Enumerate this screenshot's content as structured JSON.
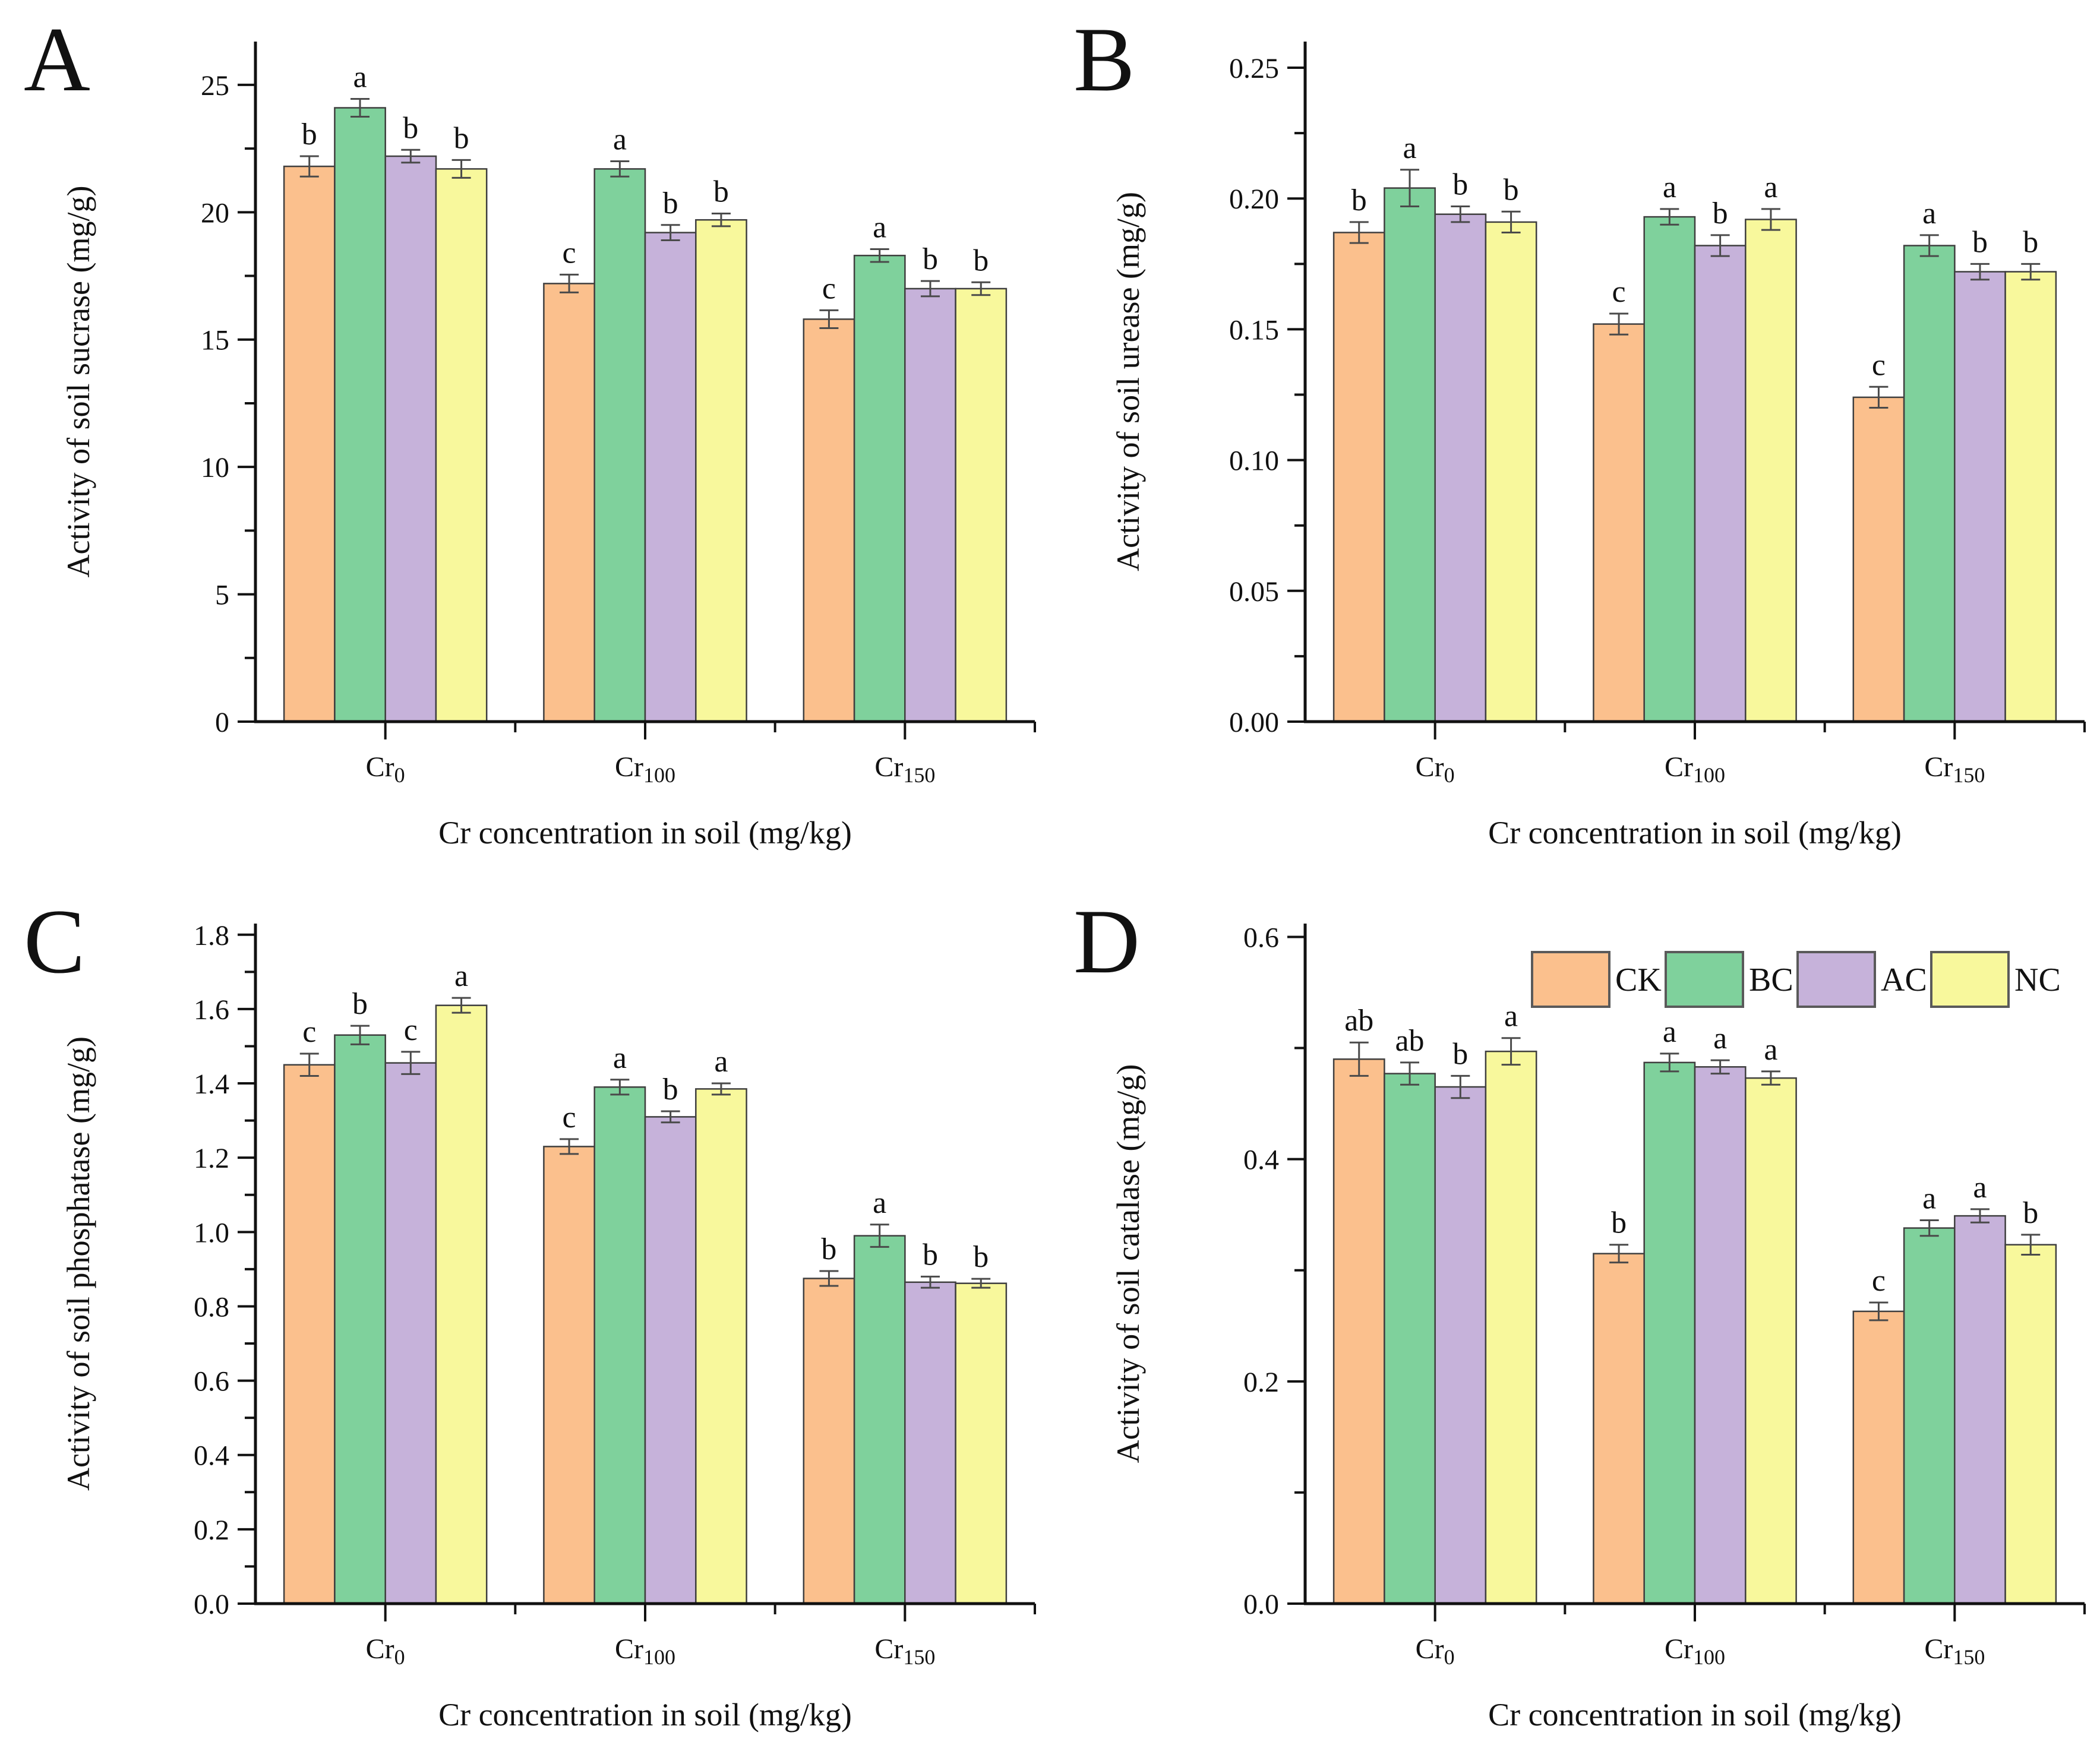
{
  "figure": {
    "background": "#ffffff"
  },
  "legend": {
    "position": "top-right-inside-panel-D",
    "entries": [
      {
        "label": "CK",
        "color": "#FBC08D"
      },
      {
        "label": "BC",
        "color": "#7FD19C"
      },
      {
        "label": "AC",
        "color": "#C6B2DA"
      },
      {
        "label": "NC",
        "color": "#F8F89C"
      }
    ]
  },
  "chart_data": [
    {
      "id": "A",
      "panel_letter": "A",
      "type": "bar",
      "ylabel": "Activity of soil sucrase (mg/g)",
      "xlabel": "Cr concentration in soil (mg/kg)",
      "ylim": [
        0,
        26.7
      ],
      "yticks": [
        0,
        5,
        10,
        15,
        20,
        25
      ],
      "ytick_step": 5,
      "yminor_step": 2.5,
      "tick_decimals": 0,
      "grid": false,
      "show_legend": false,
      "categories": [
        {
          "base": "Cr",
          "sub": "0"
        },
        {
          "base": "Cr",
          "sub": "100"
        },
        {
          "base": "Cr",
          "sub": "150"
        }
      ],
      "series": [
        {
          "name": "CK",
          "color": "#FBC08D",
          "values": [
            21.8,
            17.2,
            15.8
          ],
          "errors": [
            0.4,
            0.35,
            0.35
          ],
          "sig": [
            "b",
            "c",
            "c"
          ]
        },
        {
          "name": "BC",
          "color": "#7FD19C",
          "values": [
            24.1,
            21.7,
            18.3
          ],
          "errors": [
            0.35,
            0.3,
            0.25
          ],
          "sig": [
            "a",
            "a",
            "a"
          ]
        },
        {
          "name": "AC",
          "color": "#C6B2DA",
          "values": [
            22.2,
            19.2,
            17.0
          ],
          "errors": [
            0.25,
            0.3,
            0.3
          ],
          "sig": [
            "b",
            "b",
            "b"
          ]
        },
        {
          "name": "NC",
          "color": "#F8F89C",
          "values": [
            21.7,
            19.7,
            17.0
          ],
          "errors": [
            0.35,
            0.25,
            0.25
          ],
          "sig": [
            "b",
            "b",
            "b"
          ]
        }
      ]
    },
    {
      "id": "B",
      "panel_letter": "B",
      "type": "bar",
      "ylabel": "Activity of soil urease (mg/g)",
      "xlabel": "Cr concentration in soil (mg/kg)",
      "ylim": [
        0,
        0.26
      ],
      "yticks": [
        0.0,
        0.05,
        0.1,
        0.15,
        0.2,
        0.25
      ],
      "ytick_step": 0.05,
      "yminor_step": 0.025,
      "tick_decimals": 2,
      "grid": false,
      "show_legend": false,
      "categories": [
        {
          "base": "Cr",
          "sub": "0"
        },
        {
          "base": "Cr",
          "sub": "100"
        },
        {
          "base": "Cr",
          "sub": "150"
        }
      ],
      "series": [
        {
          "name": "CK",
          "color": "#FBC08D",
          "values": [
            0.187,
            0.152,
            0.124
          ],
          "errors": [
            0.004,
            0.004,
            0.004
          ],
          "sig": [
            "b",
            "c",
            "c"
          ]
        },
        {
          "name": "BC",
          "color": "#7FD19C",
          "values": [
            0.204,
            0.193,
            0.182
          ],
          "errors": [
            0.007,
            0.003,
            0.004
          ],
          "sig": [
            "a",
            "a",
            "a"
          ]
        },
        {
          "name": "AC",
          "color": "#C6B2DA",
          "values": [
            0.194,
            0.182,
            0.172
          ],
          "errors": [
            0.003,
            0.004,
            0.003
          ],
          "sig": [
            "b",
            "b",
            "b"
          ]
        },
        {
          "name": "NC",
          "color": "#F8F89C",
          "values": [
            0.191,
            0.192,
            0.172
          ],
          "errors": [
            0.004,
            0.004,
            0.003
          ],
          "sig": [
            "b",
            "a",
            "b"
          ]
        }
      ]
    },
    {
      "id": "C",
      "panel_letter": "C",
      "type": "bar",
      "ylabel": "Activity of soil phosphatase (mg/g)",
      "xlabel": "Cr concentration in soil (mg/kg)",
      "ylim": [
        0,
        1.83
      ],
      "yticks": [
        0.0,
        0.2,
        0.4,
        0.6,
        0.8,
        1.0,
        1.2,
        1.4,
        1.6,
        1.8
      ],
      "ytick_step": 0.2,
      "yminor_step": 0.1,
      "tick_decimals": 1,
      "grid": false,
      "show_legend": false,
      "categories": [
        {
          "base": "Cr",
          "sub": "0"
        },
        {
          "base": "Cr",
          "sub": "100"
        },
        {
          "base": "Cr",
          "sub": "150"
        }
      ],
      "series": [
        {
          "name": "CK",
          "color": "#FBC08D",
          "values": [
            1.45,
            1.23,
            0.875
          ],
          "errors": [
            0.03,
            0.02,
            0.02
          ],
          "sig": [
            "c",
            "c",
            "b"
          ]
        },
        {
          "name": "BC",
          "color": "#7FD19C",
          "values": [
            1.53,
            1.39,
            0.99
          ],
          "errors": [
            0.025,
            0.02,
            0.03
          ],
          "sig": [
            "b",
            "a",
            "a"
          ]
        },
        {
          "name": "AC",
          "color": "#C6B2DA",
          "values": [
            1.455,
            1.31,
            0.865
          ],
          "errors": [
            0.03,
            0.015,
            0.015
          ],
          "sig": [
            "c",
            "b",
            "b"
          ]
        },
        {
          "name": "NC",
          "color": "#F8F89C",
          "values": [
            1.61,
            1.385,
            0.862
          ],
          "errors": [
            0.02,
            0.015,
            0.012
          ],
          "sig": [
            "a",
            "a",
            "b"
          ]
        }
      ]
    },
    {
      "id": "D",
      "panel_letter": "D",
      "type": "bar",
      "ylabel": "Activity of soil catalase (mg/g)",
      "xlabel": "Cr concentration in soil (mg/kg)",
      "ylim": [
        0,
        0.612
      ],
      "yticks": [
        0.0,
        0.2,
        0.4,
        0.6
      ],
      "ytick_step": 0.2,
      "yminor_step": 0.1,
      "tick_decimals": 1,
      "grid": false,
      "show_legend": true,
      "categories": [
        {
          "base": "Cr",
          "sub": "0"
        },
        {
          "base": "Cr",
          "sub": "100"
        },
        {
          "base": "Cr",
          "sub": "150"
        }
      ],
      "series": [
        {
          "name": "CK",
          "color": "#FBC08D",
          "values": [
            0.49,
            0.315,
            0.263
          ],
          "errors": [
            0.015,
            0.008,
            0.008
          ],
          "sig": [
            "ab",
            "b",
            "c"
          ]
        },
        {
          "name": "BC",
          "color": "#7FD19C",
          "values": [
            0.477,
            0.487,
            0.338
          ],
          "errors": [
            0.01,
            0.008,
            0.007
          ],
          "sig": [
            "ab",
            "a",
            "a"
          ]
        },
        {
          "name": "AC",
          "color": "#C6B2DA",
          "values": [
            0.465,
            0.483,
            0.349
          ],
          "errors": [
            0.01,
            0.006,
            0.006
          ],
          "sig": [
            "b",
            "a",
            "a"
          ]
        },
        {
          "name": "NC",
          "color": "#F8F89C",
          "values": [
            0.497,
            0.473,
            0.323
          ],
          "errors": [
            0.012,
            0.006,
            0.009
          ],
          "sig": [
            "a",
            "a",
            "b"
          ]
        }
      ]
    }
  ]
}
